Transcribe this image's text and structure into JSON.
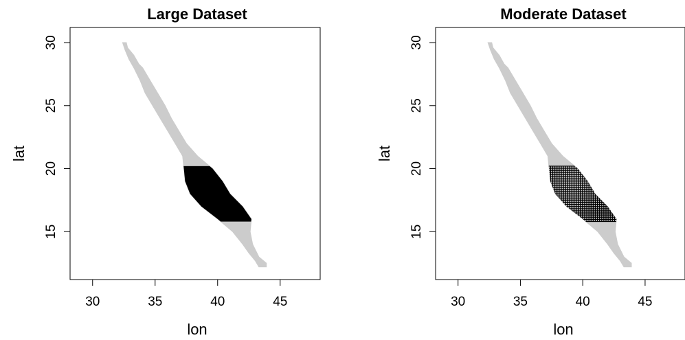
{
  "chart_data": [
    {
      "type": "map",
      "title": "Large Dataset",
      "xlabel": "lon",
      "ylabel": "lat",
      "xlim": [
        28.2,
        48.2
      ],
      "ylim": [
        11.2,
        31.2
      ],
      "xticks": [
        30,
        35,
        40,
        45
      ],
      "yticks": [
        15,
        20,
        25,
        30
      ],
      "grid": false,
      "region_color": "#cccccc",
      "subset_color": "#000000",
      "subset_style": "solid",
      "region_outline": {
        "east": [
          [
            30.0,
            32.7
          ],
          [
            29.6,
            32.8
          ],
          [
            29.0,
            33.3
          ],
          [
            28.3,
            33.7
          ],
          [
            28.0,
            34.0
          ],
          [
            27.0,
            34.6
          ],
          [
            26.0,
            35.2
          ],
          [
            25.0,
            35.8
          ],
          [
            24.0,
            36.3
          ],
          [
            23.0,
            36.9
          ],
          [
            22.0,
            37.5
          ],
          [
            21.0,
            38.4
          ],
          [
            20.0,
            39.6
          ],
          [
            19.0,
            40.4
          ],
          [
            18.0,
            41.0
          ],
          [
            17.0,
            42.0
          ],
          [
            16.0,
            42.7
          ],
          [
            15.0,
            42.6
          ],
          [
            14.0,
            42.8
          ],
          [
            13.0,
            43.3
          ],
          [
            12.5,
            43.9
          ],
          [
            12.2,
            43.9
          ]
        ],
        "west": [
          [
            12.2,
            43.3
          ],
          [
            12.7,
            43.0
          ],
          [
            13.3,
            42.5
          ],
          [
            14.0,
            42.0
          ],
          [
            15.0,
            41.2
          ],
          [
            16.0,
            40.0
          ],
          [
            17.0,
            38.7
          ],
          [
            18.0,
            37.8
          ],
          [
            19.0,
            37.4
          ],
          [
            20.0,
            37.3
          ],
          [
            21.0,
            37.2
          ],
          [
            22.0,
            36.6
          ],
          [
            23.0,
            36.0
          ],
          [
            24.0,
            35.4
          ],
          [
            25.0,
            34.8
          ],
          [
            26.0,
            34.2
          ],
          [
            27.0,
            33.8
          ],
          [
            28.0,
            33.3
          ],
          [
            28.7,
            32.9
          ],
          [
            29.4,
            32.6
          ],
          [
            30.0,
            32.4
          ]
        ]
      },
      "subset_lat_range": [
        15.8,
        20.2
      ]
    },
    {
      "type": "map",
      "title": "Moderate Dataset",
      "xlabel": "lon",
      "ylabel": "lat",
      "xlim": [
        28.2,
        48.2
      ],
      "ylim": [
        11.2,
        31.2
      ],
      "xticks": [
        30,
        35,
        40,
        45
      ],
      "yticks": [
        15,
        20,
        25,
        30
      ],
      "grid": false,
      "region_color": "#cccccc",
      "subset_color": "#000000",
      "subset_style": "dotted grid",
      "region_outline": {
        "east": [
          [
            30.0,
            32.7
          ],
          [
            29.6,
            32.8
          ],
          [
            29.0,
            33.3
          ],
          [
            28.3,
            33.7
          ],
          [
            28.0,
            34.0
          ],
          [
            27.0,
            34.6
          ],
          [
            26.0,
            35.2
          ],
          [
            25.0,
            35.8
          ],
          [
            24.0,
            36.3
          ],
          [
            23.0,
            36.9
          ],
          [
            22.0,
            37.5
          ],
          [
            21.0,
            38.4
          ],
          [
            20.0,
            39.6
          ],
          [
            19.0,
            40.4
          ],
          [
            18.0,
            41.0
          ],
          [
            17.0,
            42.0
          ],
          [
            16.0,
            42.7
          ],
          [
            15.0,
            42.6
          ],
          [
            14.0,
            42.8
          ],
          [
            13.0,
            43.3
          ],
          [
            12.5,
            43.9
          ],
          [
            12.2,
            43.9
          ]
        ],
        "west": [
          [
            12.2,
            43.3
          ],
          [
            12.7,
            43.0
          ],
          [
            13.3,
            42.5
          ],
          [
            14.0,
            42.0
          ],
          [
            15.0,
            41.2
          ],
          [
            16.0,
            40.0
          ],
          [
            17.0,
            38.7
          ],
          [
            18.0,
            37.8
          ],
          [
            19.0,
            37.4
          ],
          [
            20.0,
            37.3
          ],
          [
            21.0,
            37.2
          ],
          [
            22.0,
            36.6
          ],
          [
            23.0,
            36.0
          ],
          [
            24.0,
            35.4
          ],
          [
            25.0,
            34.8
          ],
          [
            26.0,
            34.2
          ],
          [
            27.0,
            33.8
          ],
          [
            28.0,
            33.3
          ],
          [
            28.7,
            32.9
          ],
          [
            29.4,
            32.6
          ],
          [
            30.0,
            32.4
          ]
        ]
      },
      "subset_lat_range": [
        15.8,
        20.2
      ]
    }
  ]
}
